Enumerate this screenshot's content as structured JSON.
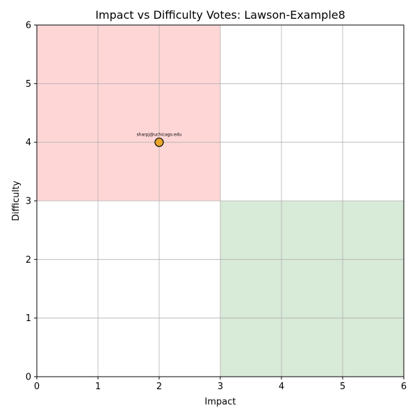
{
  "chart_data": {
    "type": "scatter",
    "title": "Impact vs Difficulty Votes: Lawson-Example8",
    "xlabel": "Impact",
    "ylabel": "Difficulty",
    "xlim": [
      0,
      6
    ],
    "ylim": [
      0,
      6
    ],
    "x_ticks": [
      0,
      1,
      2,
      3,
      4,
      5,
      6
    ],
    "y_ticks": [
      0,
      1,
      2,
      3,
      4,
      5,
      6
    ],
    "grid": true,
    "regions": [
      {
        "x": [
          0,
          3
        ],
        "y": [
          3,
          6
        ],
        "color": "#ffd6d6"
      },
      {
        "x": [
          3,
          6
        ],
        "y": [
          0,
          3
        ],
        "color": "#d8ead8"
      }
    ],
    "points": [
      {
        "x": 2,
        "y": 4,
        "label": "sharpj@uchicago.edu",
        "color": "#e8a62e"
      }
    ]
  },
  "colors": {
    "grid": "#b0b0b0",
    "axis": "#000000",
    "marker_edge": "#000000"
  }
}
